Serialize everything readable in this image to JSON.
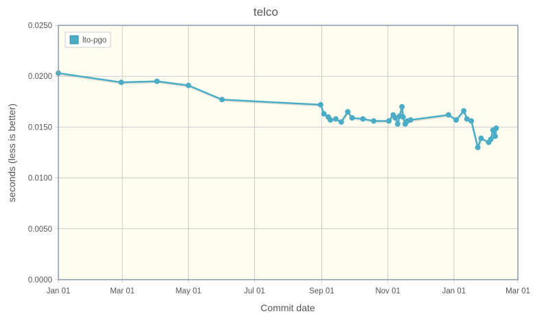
{
  "chart_data": {
    "type": "line",
    "title": "telco",
    "xlabel": "Commit date",
    "ylabel": "seconds (less is better)",
    "x_tick_labels": [
      "Jan 01",
      "Mar 01",
      "May 01",
      "Jul 01",
      "Sep 01",
      "Nov 01",
      "Jan 01",
      "Mar 01"
    ],
    "x_tick_dates": [
      "2013-01-01",
      "2013-03-01",
      "2013-05-01",
      "2013-07-01",
      "2013-09-01",
      "2013-11-01",
      "2014-01-01",
      "2014-03-01"
    ],
    "xlim": [
      "2013-01-01",
      "2014-03-01"
    ],
    "ylim": [
      0,
      0.025
    ],
    "y_ticks": [
      0,
      0.005,
      0.01,
      0.015,
      0.02,
      0.025
    ],
    "y_tick_labels": [
      "0.0000",
      "0.0050",
      "0.0100",
      "0.0150",
      "0.0200",
      "0.0250"
    ],
    "grid": true,
    "legend_position": "top-left",
    "colors": {
      "series": "#4bacc6",
      "plot_background": "#fffcf0",
      "grid": "#cccccc",
      "frame": "#8899aa",
      "text": "#555555"
    },
    "series": [
      {
        "name": "lto-pgo",
        "points": [
          {
            "x": "2013-01-01",
            "y": 0.0203
          },
          {
            "x": "2013-02-28",
            "y": 0.0194
          },
          {
            "x": "2013-04-02",
            "y": 0.0195
          },
          {
            "x": "2013-05-01",
            "y": 0.0191
          },
          {
            "x": "2013-06-01",
            "y": 0.0177
          },
          {
            "x": "2013-08-31",
            "y": 0.0172
          },
          {
            "x": "2013-09-03",
            "y": 0.0163
          },
          {
            "x": "2013-09-07",
            "y": 0.016
          },
          {
            "x": "2013-09-09",
            "y": 0.0157
          },
          {
            "x": "2013-09-14",
            "y": 0.0158
          },
          {
            "x": "2013-09-19",
            "y": 0.0155
          },
          {
            "x": "2013-09-25",
            "y": 0.0165
          },
          {
            "x": "2013-09-29",
            "y": 0.0159
          },
          {
            "x": "2013-10-09",
            "y": 0.0158
          },
          {
            "x": "2013-10-19",
            "y": 0.0156
          },
          {
            "x": "2013-11-02",
            "y": 0.0156
          },
          {
            "x": "2013-11-06",
            "y": 0.0162
          },
          {
            "x": "2013-11-08",
            "y": 0.0159
          },
          {
            "x": "2013-11-10",
            "y": 0.0153
          },
          {
            "x": "2013-11-12",
            "y": 0.0161
          },
          {
            "x": "2013-11-14",
            "y": 0.017
          },
          {
            "x": "2013-11-15",
            "y": 0.016
          },
          {
            "x": "2013-11-17",
            "y": 0.0153
          },
          {
            "x": "2013-11-19",
            "y": 0.0156
          },
          {
            "x": "2013-11-22",
            "y": 0.0157
          },
          {
            "x": "2013-12-27",
            "y": 0.0162
          },
          {
            "x": "2014-01-03",
            "y": 0.0157
          },
          {
            "x": "2014-01-10",
            "y": 0.0166
          },
          {
            "x": "2014-01-13",
            "y": 0.0158
          },
          {
            "x": "2014-01-17",
            "y": 0.0156
          },
          {
            "x": "2014-01-23",
            "y": 0.013
          },
          {
            "x": "2014-01-26",
            "y": 0.0139
          },
          {
            "x": "2014-02-02",
            "y": 0.0135
          },
          {
            "x": "2014-02-04",
            "y": 0.0138
          },
          {
            "x": "2014-02-06",
            "y": 0.0147
          },
          {
            "x": "2014-02-08",
            "y": 0.0141
          },
          {
            "x": "2014-02-09",
            "y": 0.0149
          }
        ]
      }
    ]
  }
}
